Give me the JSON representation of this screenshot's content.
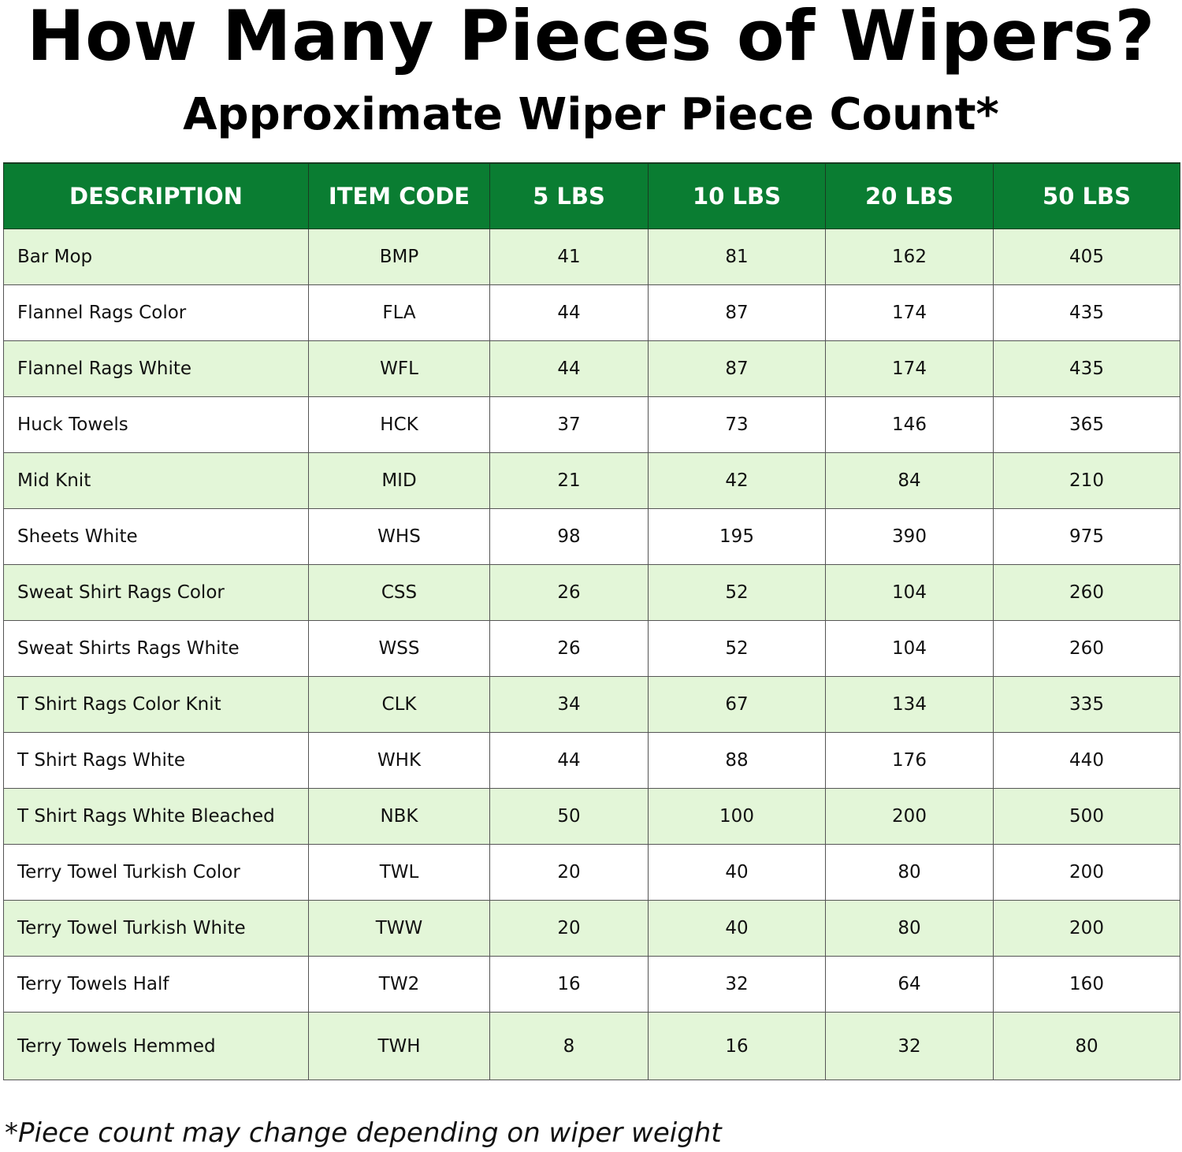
{
  "title": "How Many Pieces of Wipers?",
  "subtitle": "Approximate Wiper Piece Count*",
  "table": {
    "headers": [
      "DESCRIPTION",
      "ITEM CODE",
      "5 LBS",
      "10 LBS",
      "20 LBS",
      "50 LBS"
    ],
    "rows": [
      [
        "Bar Mop",
        "BMP",
        "41",
        "81",
        "162",
        "405"
      ],
      [
        "Flannel Rags Color",
        "FLA",
        "44",
        "87",
        "174",
        "435"
      ],
      [
        "Flannel Rags White",
        "WFL",
        "44",
        "87",
        "174",
        "435"
      ],
      [
        "Huck Towels",
        "HCK",
        "37",
        "73",
        "146",
        "365"
      ],
      [
        "Mid Knit",
        "MID",
        "21",
        "42",
        "84",
        "210"
      ],
      [
        "Sheets White",
        "WHS",
        "98",
        "195",
        "390",
        "975"
      ],
      [
        "Sweat Shirt Rags Color",
        "CSS",
        "26",
        "52",
        "104",
        "260"
      ],
      [
        "Sweat Shirts Rags White",
        "WSS",
        "26",
        "52",
        "104",
        "260"
      ],
      [
        "T Shirt Rags Color Knit",
        "CLK",
        "34",
        "67",
        "134",
        "335"
      ],
      [
        "T Shirt Rags White",
        "WHK",
        "44",
        "88",
        "176",
        "440"
      ],
      [
        "T Shirt Rags White Bleached",
        "NBK",
        "50",
        "100",
        "200",
        "500"
      ],
      [
        "Terry Towel Turkish Color",
        "TWL",
        "20",
        "40",
        "80",
        "200"
      ],
      [
        "Terry Towel Turkish White",
        "TWW",
        "20",
        "40",
        "80",
        "200"
      ],
      [
        "Terry Towels Half",
        "TW2",
        "16",
        "32",
        "64",
        "160"
      ],
      [
        "Terry Towels Hemmed",
        "TWH",
        "8",
        "16",
        "32",
        "80"
      ]
    ]
  },
  "footnote": "*Piece count may change depending on wiper weight",
  "colors": {
    "header_bg": "#0a7d32",
    "header_text": "#ffffff",
    "row_alt_bg": "#e3f6d8",
    "row_bg": "#ffffff"
  }
}
